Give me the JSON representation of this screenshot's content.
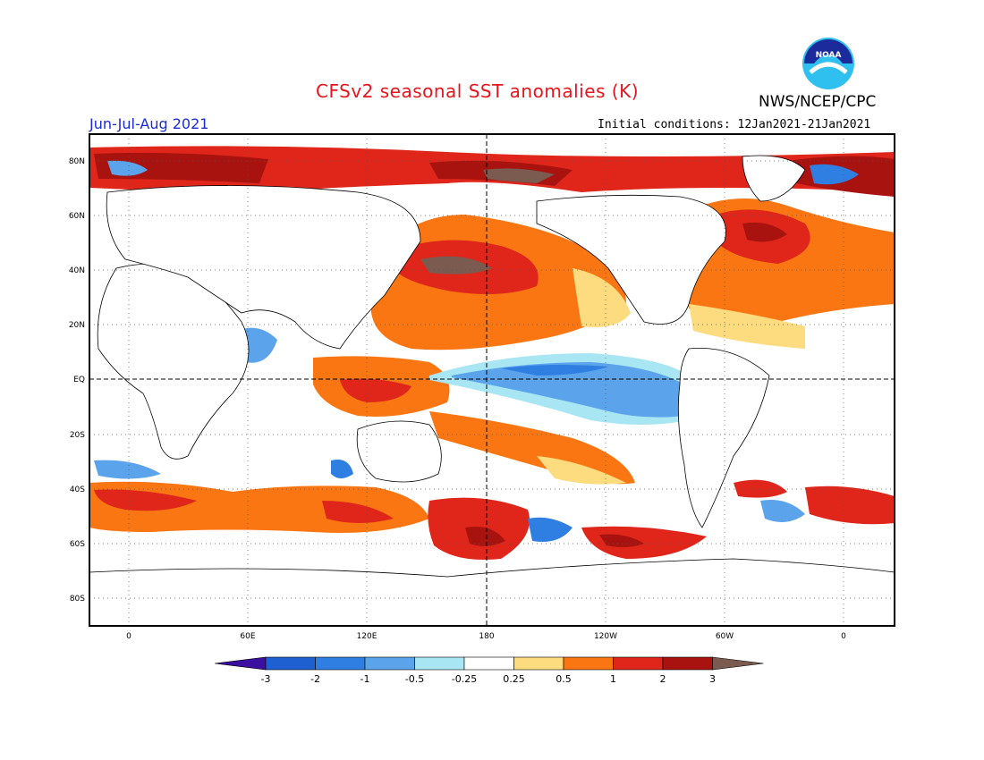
{
  "header": {
    "title": "CFSv2 seasonal SST anomalies (K)",
    "agency": "NWS/NCEP/CPC",
    "season": "Jun-Jul-Aug 2021",
    "initial_conditions": "Initial conditions: 12Jan2021-21Jan2021",
    "logo_text": "NOAA"
  },
  "map": {
    "lat_labels": [
      "80N",
      "60N",
      "40N",
      "20N",
      "EQ",
      "20S",
      "40S",
      "60S",
      "80S"
    ],
    "lon_labels": [
      "0",
      "60E",
      "120E",
      "180",
      "120W",
      "60W",
      "0"
    ]
  },
  "colorbar": {
    "labels": [
      "-3",
      "-2",
      "-1",
      "-0.5",
      "-0.25",
      "0.25",
      "0.5",
      "1",
      "2",
      "3"
    ],
    "colors": [
      "#3b0fa0",
      "#1e5fd1",
      "#2f7fe3",
      "#5ba4ec",
      "#a8e6f3",
      "#ffffff",
      "#fcdc7e",
      "#f97612",
      "#e0261b",
      "#a8130f",
      "#7b5a4f"
    ]
  }
}
